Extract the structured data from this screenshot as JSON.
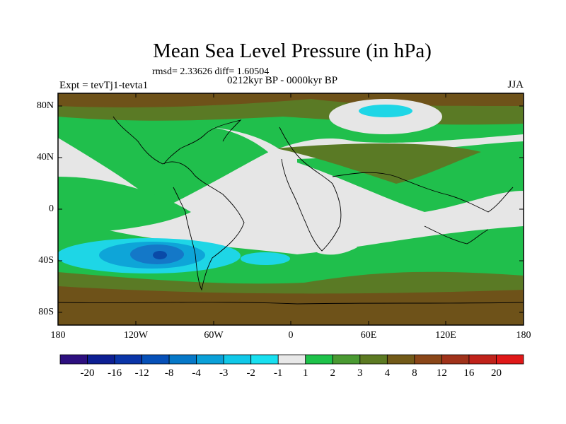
{
  "title": "Mean Sea Level Pressure (in hPa)",
  "stats": "rmsd= 2.33626 diff= 1.60504",
  "period": "0212kyr BP - 0000kyr BP",
  "experiment": "Expt = tevTj1-tevta1",
  "season": "JJA",
  "axes": {
    "lat_ticks": [
      "80N",
      "40N",
      "0",
      "40S",
      "80S"
    ],
    "lon_ticks": [
      "180",
      "120W",
      "60W",
      "0",
      "60E",
      "120E",
      "180"
    ]
  },
  "colorbar": {
    "labels": [
      "-20",
      "-16",
      "-12",
      "-8",
      "-4",
      "-3",
      "-2",
      "-1",
      "1",
      "2",
      "3",
      "4",
      "8",
      "12",
      "16",
      "20"
    ],
    "colors": [
      "#2d0f7f",
      "#0d1f93",
      "#0a35a8",
      "#0650b8",
      "#0678c8",
      "#0aa0d8",
      "#10c8e8",
      "#18e0f0",
      "#e8e8e8",
      "#1ec24a",
      "#4a9a32",
      "#5c7a22",
      "#725a18",
      "#8a4618",
      "#a0321a",
      "#c0221a",
      "#e01818"
    ]
  },
  "palette": {
    "land_white": "#e6e6e6",
    "green": "#20bf4c",
    "olive": "#5a7a25",
    "brown": "#6e5219",
    "cyan": "#1ed6e6",
    "sky": "#0ea5d8",
    "blue": "#1478c8",
    "navy": "#0a4aa8"
  }
}
